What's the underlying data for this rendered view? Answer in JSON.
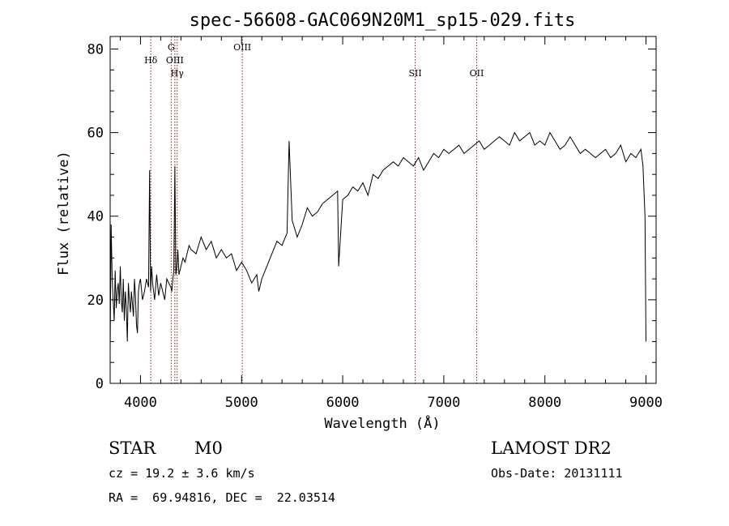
{
  "chart_data": {
    "type": "line",
    "title": "spec-56608-GAC069N20M1_sp15-029.fits",
    "xlabel": "Wavelength (Å)",
    "ylabel": "Flux (relative)",
    "xlim": [
      3700,
      9100
    ],
    "ylim": [
      0,
      83
    ],
    "xticks": [
      4000,
      5000,
      6000,
      7000,
      8000,
      9000
    ],
    "yticks": [
      0,
      20,
      40,
      60,
      80
    ],
    "line_color": "#000000",
    "marker_color": "#8b1a1a",
    "spectral_lines": [
      {
        "name": "Hδ",
        "wavelength": 4102,
        "tier": 1
      },
      {
        "name": "G",
        "wavelength": 4304,
        "tier": 0
      },
      {
        "name": "OIII",
        "wavelength": 4340,
        "tier": 1
      },
      {
        "name": "Hγ",
        "wavelength": 4363,
        "tier": 2
      },
      {
        "name": "OIII",
        "wavelength": 5007,
        "tier": 0
      },
      {
        "name": "SII",
        "wavelength": 6717,
        "tier": 2
      },
      {
        "name": "OII",
        "wavelength": 7325,
        "tier": 2
      }
    ],
    "series": [
      {
        "x": [
          3700,
          3710,
          3720,
          3730,
          3740,
          3750,
          3760,
          3770,
          3780,
          3790,
          3800,
          3810,
          3820,
          3830,
          3840,
          3850,
          3860,
          3870,
          3880,
          3890,
          3900,
          3910,
          3920,
          3930,
          3940,
          3950,
          3960,
          3970,
          3980,
          3990,
          4000,
          4020,
          4040,
          4060,
          4080,
          4090,
          4100,
          4110,
          4120,
          4140,
          4160,
          4180,
          4200,
          4220,
          4240,
          4260,
          4280,
          4300,
          4310,
          4320,
          4330,
          4340,
          4350,
          4360,
          4370,
          4380,
          4400,
          4420,
          4440,
          4460,
          4480,
          4500,
          4550,
          4600,
          4650,
          4700,
          4750,
          4800,
          4850,
          4900,
          4950,
          5000,
          5050,
          5100,
          5150,
          5170,
          5200,
          5250,
          5300,
          5350,
          5400,
          5450,
          5470,
          5500,
          5550,
          5600,
          5650,
          5700,
          5750,
          5800,
          5850,
          5900,
          5950,
          5960,
          6000,
          6050,
          6100,
          6150,
          6200,
          6250,
          6300,
          6350,
          6400,
          6450,
          6500,
          6550,
          6600,
          6650,
          6700,
          6750,
          6800,
          6850,
          6900,
          6950,
          7000,
          7050,
          7100,
          7150,
          7200,
          7250,
          7300,
          7350,
          7400,
          7450,
          7500,
          7550,
          7600,
          7650,
          7700,
          7750,
          7800,
          7850,
          7900,
          7950,
          8000,
          8050,
          8100,
          8150,
          8200,
          8250,
          8300,
          8350,
          8400,
          8450,
          8500,
          8550,
          8600,
          8650,
          8700,
          8750,
          8800,
          8850,
          8900,
          8950,
          8970,
          8990,
          9000
        ],
        "y": [
          8,
          38,
          25,
          20,
          15,
          27,
          18,
          22,
          24,
          19,
          28,
          20,
          17,
          25,
          15,
          22,
          18,
          10,
          24,
          20,
          17,
          22,
          19,
          16,
          25,
          21,
          14,
          12,
          22,
          24,
          25,
          20,
          22,
          25,
          23,
          51,
          22,
          28,
          24,
          20,
          26,
          21,
          24,
          22,
          20,
          25,
          24,
          23,
          22,
          25,
          27,
          52,
          26,
          28,
          32,
          26,
          28,
          30,
          29,
          31,
          33,
          32,
          31,
          35,
          32,
          34,
          30,
          32,
          30,
          31,
          27,
          29,
          27,
          24,
          26,
          22,
          25,
          28,
          31,
          34,
          33,
          36,
          58,
          39,
          35,
          38,
          42,
          40,
          41,
          43,
          44,
          45,
          46,
          28,
          44,
          45,
          47,
          46,
          48,
          45,
          50,
          49,
          51,
          52,
          53,
          52,
          54,
          53,
          52,
          54,
          51,
          53,
          55,
          54,
          56,
          55,
          56,
          57,
          55,
          56,
          57,
          58,
          56,
          57,
          58,
          59,
          58,
          57,
          60,
          58,
          59,
          60,
          57,
          58,
          57,
          60,
          58,
          56,
          57,
          59,
          57,
          55,
          56,
          55,
          54,
          55,
          56,
          54,
          55,
          57,
          53,
          55,
          54,
          56,
          52,
          40,
          10
        ]
      }
    ]
  },
  "info": {
    "object_class": "STAR",
    "subclass": "M0",
    "survey": "LAMOST DR2",
    "redshift": "cz = 19.2 ± 3.6 km/s",
    "obs_date": "Obs-Date: 20131111",
    "coords": "RA =  69.94816, DEC =  22.03514"
  }
}
